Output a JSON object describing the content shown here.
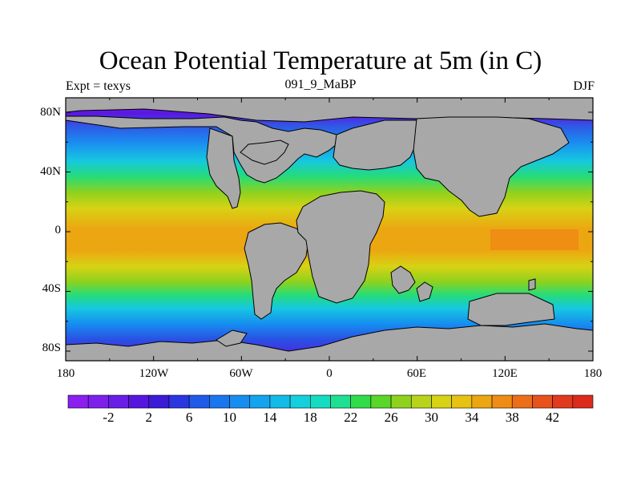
{
  "title": "Ocean Potential Temperature at 5m (in C)",
  "subtitle_left": "Expt = texys",
  "subtitle_center": "091_9_MaBP",
  "subtitle_right": "DJF",
  "lat_labels": [
    "80N",
    "40N",
    "0",
    "40S",
    "80S"
  ],
  "lon_labels": [
    "180",
    "120W",
    "60W",
    "0",
    "60E",
    "120E",
    "180"
  ],
  "colorbar": {
    "labels": [
      "-2",
      "2",
      "6",
      "10",
      "14",
      "18",
      "22",
      "26",
      "30",
      "34",
      "38",
      "42"
    ],
    "colors": [
      "#8a1ff0",
      "#7d20ec",
      "#6a1de6",
      "#5716e0",
      "#3b1bd6",
      "#2a36e0",
      "#1f5ae8",
      "#1976ee",
      "#168ef0",
      "#14a4ee",
      "#12bbe8",
      "#14cfdc",
      "#14dcc0",
      "#1ee092",
      "#30dc4a",
      "#5ad628",
      "#8ed21e",
      "#b8d41a",
      "#d8d214",
      "#e8c212",
      "#eca612",
      "#ee8c14",
      "#ec6e18",
      "#e8521c",
      "#e23a1e",
      "#dc2a1c"
    ]
  },
  "colors": {
    "land": "#a8a8a8",
    "coast": "#000000",
    "frame": "#000000"
  }
}
